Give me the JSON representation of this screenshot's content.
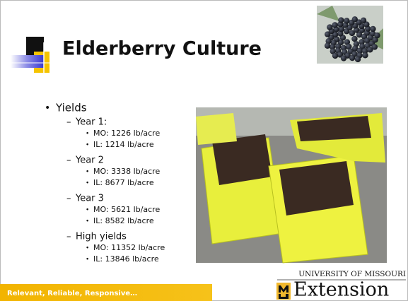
{
  "header": {
    "title": "Elderberry Culture"
  },
  "bullets": {
    "text": "Yields",
    "groups": [
      {
        "text": "Year 1:",
        "items": [
          "MO: 1226 lb/acre",
          "IL: 1214 lb/acre"
        ]
      },
      {
        "text": "Year 2",
        "items": [
          "MO: 3338 lb/acre",
          "IL: 8677 lb/acre"
        ]
      },
      {
        "text": "Year 3",
        "items": [
          "MO: 5621 lb/acre",
          "IL: 8582 lb/acre"
        ]
      },
      {
        "text": "High yields",
        "items": [
          "MO: 11352 lb/acre",
          "IL: 13846 lb/acre"
        ]
      }
    ]
  },
  "footer": {
    "tagline": "Relevant, Reliable, Responsive…"
  },
  "logo": {
    "university": "UNIVERSITY OF MISSOURI",
    "name": "Extension"
  }
}
